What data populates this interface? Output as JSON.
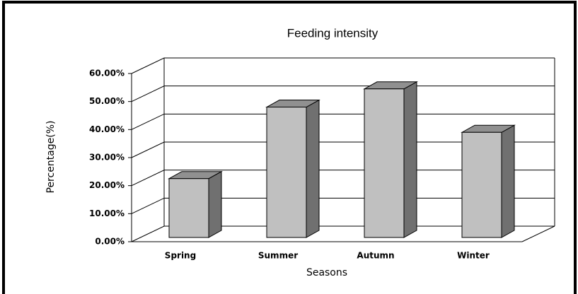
{
  "chart_data": {
    "type": "bar",
    "title": "Feeding intensity",
    "x_label": "Seasons",
    "y_label": "Percentage(%)",
    "categories": [
      "Spring",
      "Summer",
      "Autumn",
      "Winter"
    ],
    "values": [
      21,
      46.5,
      53,
      37.5
    ],
    "color": "#c0c0c0",
    "ylim": [
      0,
      60
    ],
    "yticks": [
      {
        "value": 0,
        "label": "0.00%"
      },
      {
        "value": 10,
        "label": "10.00%"
      },
      {
        "value": 20,
        "label": "20.00%"
      },
      {
        "value": 30,
        "label": "30.00%"
      },
      {
        "value": 40,
        "label": "40.00%"
      },
      {
        "value": 50,
        "label": "50.00%"
      },
      {
        "value": 60,
        "label": "60.00%"
      }
    ],
    "grid": true
  }
}
